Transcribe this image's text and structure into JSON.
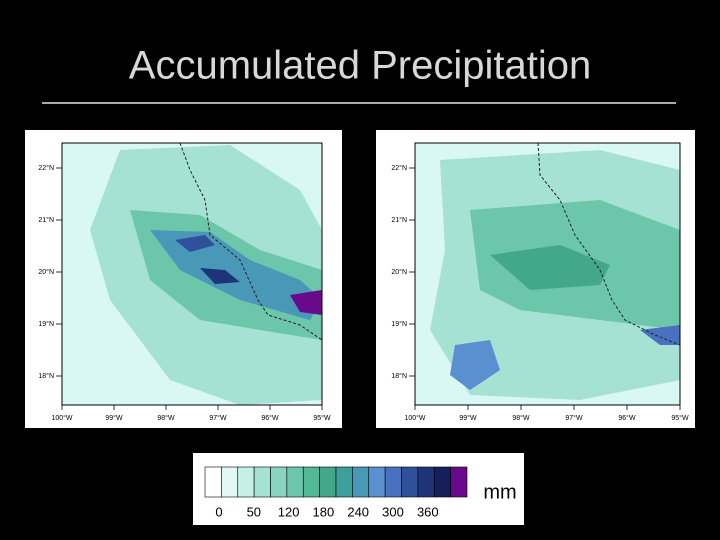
{
  "title": "Accumulated Precipitation",
  "maps": [
    {
      "lat_labels": [
        "22°N",
        "21°N",
        "20°N",
        "19°N",
        "18°N"
      ],
      "lon_labels": [
        "100°W",
        "99°W",
        "98°W",
        "97°W",
        "96°W",
        "95°W"
      ]
    },
    {
      "lat_labels": [
        "22°N",
        "21°N",
        "20°N",
        "19°N",
        "18°N"
      ],
      "lon_labels": [
        "100°W",
        "99°W",
        "98°W",
        "97°W",
        "96°W",
        "95°W"
      ]
    }
  ],
  "colorbar": {
    "labels": [
      "0",
      "50",
      "120",
      "180",
      "240",
      "300",
      "360"
    ],
    "unit": "mm",
    "colors": [
      "#ffffff",
      "#e2f8f4",
      "#c6efe6",
      "#a6e2d4",
      "#88d4c0",
      "#6cc6aa",
      "#52b896",
      "#43a88a",
      "#3c9f9a",
      "#4a98b8",
      "#5a8fd0",
      "#4a70c0",
      "#30509c",
      "#1f3378",
      "#15205a",
      "#6a0a8a"
    ]
  }
}
